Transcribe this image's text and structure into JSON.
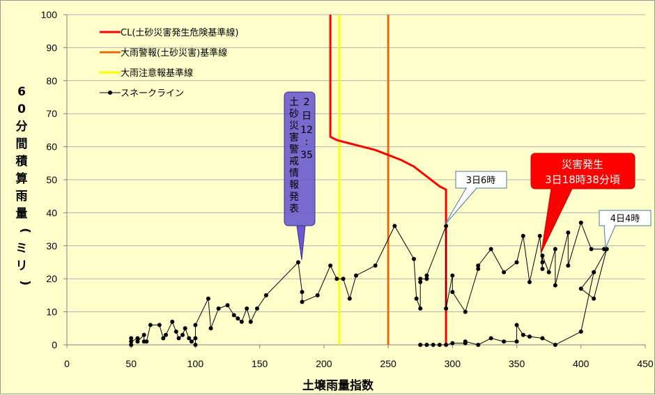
{
  "chart_data": {
    "type": "line",
    "title": "",
    "xlabel": "土壌雨量指数",
    "ylabel": "60分間積算雨量(ミリ)",
    "ylabel_chars": [
      "6",
      "0",
      "分",
      "間",
      "積",
      "算",
      "雨",
      "量",
      "(",
      "ミ",
      "リ",
      ")"
    ],
    "xlim": [
      0,
      450
    ],
    "ylim": [
      0,
      100
    ],
    "xticks": [
      0,
      50,
      100,
      150,
      200,
      250,
      300,
      350,
      400,
      450
    ],
    "yticks": [
      0,
      10,
      20,
      30,
      40,
      50,
      60,
      70,
      80,
      90,
      100
    ],
    "grid": "horizontal",
    "legend_position": "top-left",
    "series": [
      {
        "name": "CL(土砂災害発生危険基準線)",
        "color": "#ff0000",
        "points": [
          [
            205,
            100
          ],
          [
            205,
            63
          ],
          [
            210,
            62
          ],
          [
            220,
            61
          ],
          [
            230,
            60
          ],
          [
            240,
            59
          ],
          [
            250,
            57.5
          ],
          [
            260,
            56
          ],
          [
            270,
            54
          ],
          [
            280,
            51
          ],
          [
            290,
            48
          ],
          [
            295,
            47
          ],
          [
            295,
            0
          ]
        ]
      },
      {
        "name": "大雨警報(土砂災害)基準線",
        "color": "#e36c09",
        "points": [
          [
            250,
            0
          ],
          [
            250,
            100
          ]
        ]
      },
      {
        "name": "大雨注意報基準線",
        "color": "#ffff00",
        "points": [
          [
            212,
            0
          ],
          [
            212,
            100
          ]
        ]
      },
      {
        "name": "スネークライン",
        "color": "#000000",
        "markers": true,
        "points": [
          [
            50,
            0
          ],
          [
            50,
            2
          ],
          [
            50,
            1
          ],
          [
            55,
            2
          ],
          [
            55,
            1
          ],
          [
            60,
            3
          ],
          [
            60,
            1
          ],
          [
            62,
            1
          ],
          [
            65,
            6
          ],
          [
            72,
            6
          ],
          [
            75,
            2
          ],
          [
            77,
            3
          ],
          [
            82,
            7
          ],
          [
            85,
            4
          ],
          [
            87,
            2
          ],
          [
            90,
            3
          ],
          [
            92,
            5
          ],
          [
            95,
            2
          ],
          [
            97,
            1
          ],
          [
            100,
            2
          ],
          [
            100,
            0
          ],
          [
            100,
            6
          ],
          [
            110,
            14
          ],
          [
            112,
            5
          ],
          [
            118,
            11
          ],
          [
            125,
            12
          ],
          [
            130,
            9
          ],
          [
            133,
            8
          ],
          [
            136,
            7
          ],
          [
            140,
            11
          ],
          [
            143,
            7
          ],
          [
            148,
            11
          ],
          [
            155,
            15
          ],
          [
            180,
            25
          ],
          [
            183,
            16
          ],
          [
            183,
            13
          ],
          [
            195,
            15
          ],
          [
            205,
            24
          ],
          [
            210,
            20
          ],
          [
            215,
            20
          ],
          [
            220,
            14
          ],
          [
            225,
            21
          ],
          [
            240,
            24
          ],
          [
            255,
            36
          ],
          [
            270,
            26
          ],
          [
            272,
            14
          ],
          [
            275,
            11
          ],
          [
            275,
            19
          ],
          [
            275,
            20
          ],
          [
            280,
            20
          ],
          [
            280,
            21
          ],
          [
            295,
            36
          ],
          [
            295,
            11
          ],
          [
            300,
            21
          ],
          [
            300,
            16
          ],
          [
            310,
            10
          ],
          [
            320,
            23
          ],
          [
            320,
            24
          ],
          [
            330,
            29
          ],
          [
            340,
            22
          ],
          [
            350,
            25
          ],
          [
            355,
            33
          ],
          [
            360,
            19
          ],
          [
            368,
            33
          ],
          [
            370,
            23
          ],
          [
            370,
            25
          ],
          [
            370,
            27
          ],
          [
            375,
            22
          ],
          [
            380,
            29
          ],
          [
            380,
            18
          ],
          [
            390,
            34
          ],
          [
            390,
            24
          ],
          [
            400,
            37
          ],
          [
            408,
            29
          ],
          [
            418,
            29
          ],
          [
            420,
            29
          ],
          [
            410,
            22
          ],
          [
            400,
            17
          ],
          [
            410,
            14
          ],
          [
            420,
            29
          ]
        ]
      },
      {
        "name": "",
        "color": "#000000",
        "markers": true,
        "points": [
          [
            275,
            0
          ],
          [
            280,
            0
          ],
          [
            285,
            0
          ],
          [
            290,
            0
          ],
          [
            295,
            0
          ],
          [
            300,
            0.5
          ],
          [
            310,
            0.5
          ],
          [
            310,
            1
          ],
          [
            320,
            0
          ],
          [
            330,
            2
          ],
          [
            340,
            1
          ],
          [
            350,
            1
          ],
          [
            350,
            6
          ],
          [
            355,
            3
          ],
          [
            360,
            2.5
          ],
          [
            370,
            2
          ],
          [
            380,
            0
          ],
          [
            400,
            4
          ],
          [
            410,
            22
          ]
        ]
      }
    ],
    "annotations": [
      {
        "text": "2日12:35 土砂災害警戒情報発表",
        "col1": "2日12:35",
        "col2": "土砂災害警戒情報発表"
      },
      {
        "text": "3日6時"
      },
      {
        "text": "4日4時"
      },
      {
        "text": "災害発生 3日18時38分頃",
        "line1": "災害発生",
        "line2": "3日18時38分頃"
      }
    ]
  },
  "colors": {
    "background": "#ffffcc",
    "callout_purple": "#6a5acd",
    "disaster_red": "#ff0000"
  }
}
